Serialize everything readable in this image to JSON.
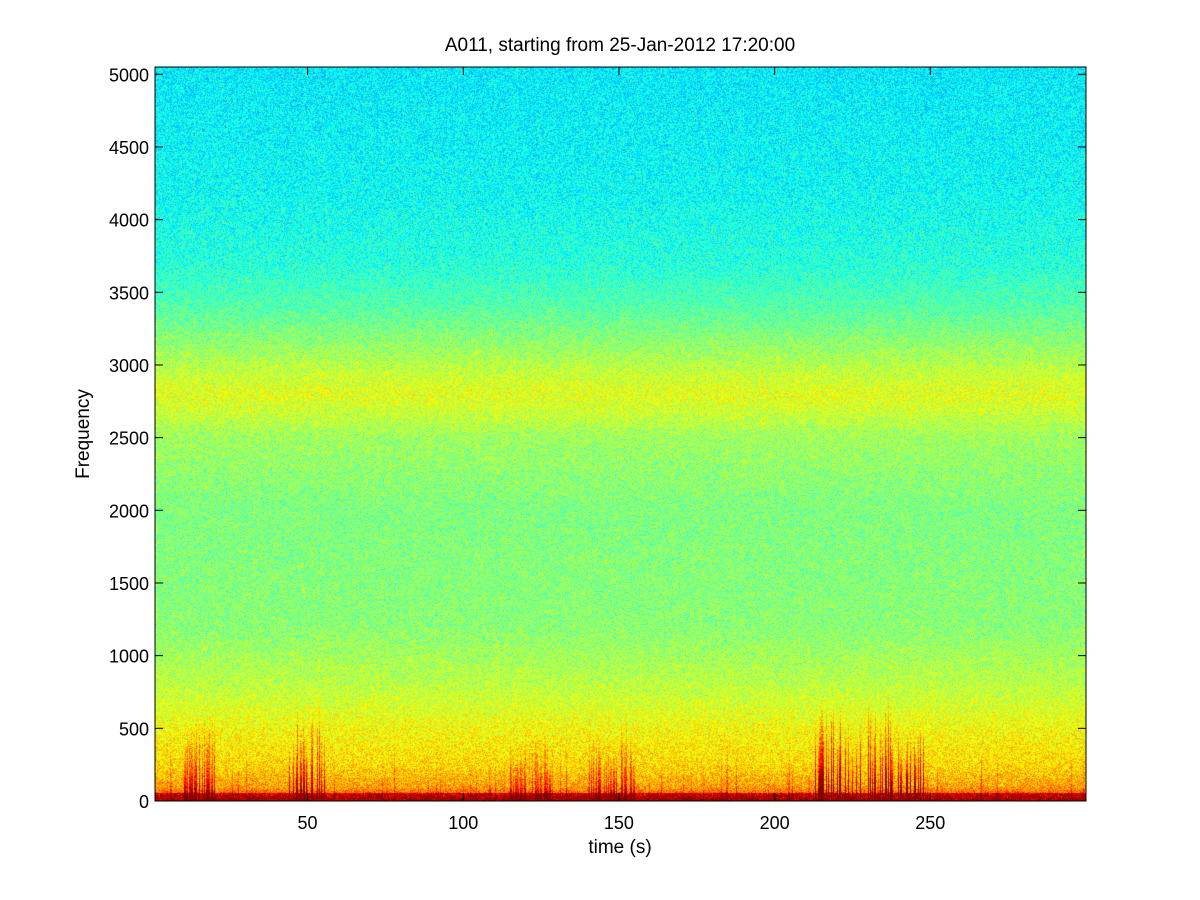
{
  "chart_data": {
    "type": "heatmap",
    "title": "A011, starting from 25-Jan-2012 17:20:00",
    "xlabel": "time (s)",
    "ylabel": "Frequency",
    "xlim": [
      1,
      300
    ],
    "ylim": [
      0,
      5050
    ],
    "x_ticks": [
      50,
      100,
      150,
      200,
      250
    ],
    "y_ticks": [
      0,
      500,
      1000,
      1500,
      2000,
      2500,
      3000,
      3500,
      4000,
      4500,
      5000
    ],
    "grid": false,
    "colormap": "jet",
    "intensity_profile": {
      "frequency": [
        0,
        100,
        250,
        500,
        800,
        1200,
        2000,
        2500,
        2700,
        2800,
        2900,
        3100,
        3400,
        3700,
        4200,
        5050
      ],
      "level": [
        0.86,
        0.72,
        0.66,
        0.62,
        0.56,
        0.51,
        0.5,
        0.53,
        0.58,
        0.6,
        0.58,
        0.53,
        0.46,
        0.41,
        0.38,
        0.36
      ]
    },
    "bursts": [
      {
        "time_range": [
          10,
          20
        ],
        "frequency_max": 650,
        "strength": 0.35
      },
      {
        "time_range": [
          44,
          56
        ],
        "frequency_max": 700,
        "strength": 0.45
      },
      {
        "time_range": [
          115,
          128
        ],
        "frequency_max": 500,
        "strength": 0.25
      },
      {
        "time_range": [
          140,
          155
        ],
        "frequency_max": 550,
        "strength": 0.3
      },
      {
        "time_range": [
          212,
          248
        ],
        "frequency_max": 750,
        "strength": 0.5
      }
    ]
  }
}
